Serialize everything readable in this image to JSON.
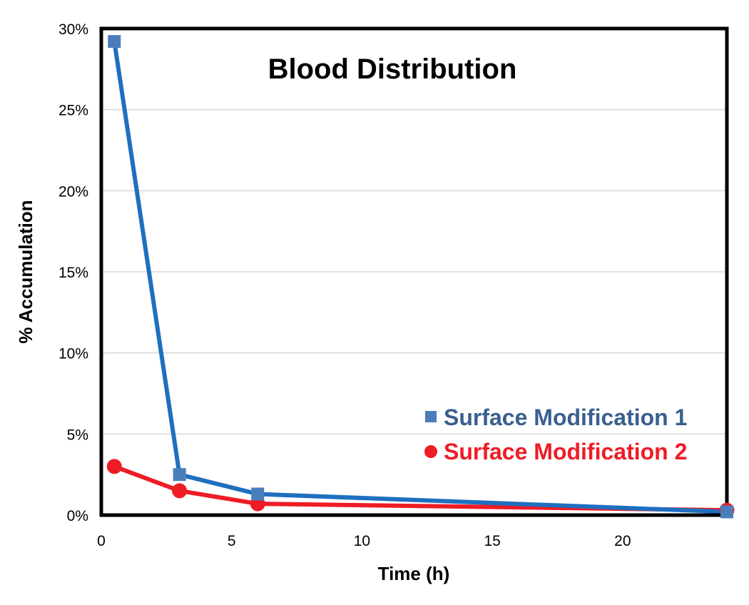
{
  "chart_data": {
    "type": "line",
    "title": "Blood Distribution",
    "xlabel": "Time (h)",
    "ylabel": "% Accumulation",
    "xlim": [
      0,
      24
    ],
    "ylim": [
      0,
      30
    ],
    "x_ticks": [
      0,
      5,
      10,
      15,
      20
    ],
    "x_tick_labels": [
      "0",
      "5",
      "10",
      "15",
      "20"
    ],
    "y_ticks": [
      0,
      5,
      10,
      15,
      20,
      25,
      30
    ],
    "y_tick_labels": [
      "0%",
      "5%",
      "10%",
      "15%",
      "20%",
      "25%",
      "30%"
    ],
    "grid": "horizontal",
    "legend_position": "bottom-right",
    "series": [
      {
        "name": "Surface Modification 1",
        "marker": "square",
        "line_color": "#1f6fbf",
        "marker_color": "#4a7ebb",
        "label_color": "#3a5f8f",
        "x": [
          0.5,
          3,
          6,
          24
        ],
        "values": [
          29.2,
          2.5,
          1.3,
          0.2
        ]
      },
      {
        "name": "Surface Modification 2",
        "marker": "circle",
        "line_color": "#ee1c25",
        "marker_color": "#ee1c25",
        "label_color": "#ee1c25",
        "x": [
          0.5,
          3,
          6,
          24
        ],
        "values": [
          3.0,
          1.5,
          0.7,
          0.3
        ]
      }
    ]
  }
}
